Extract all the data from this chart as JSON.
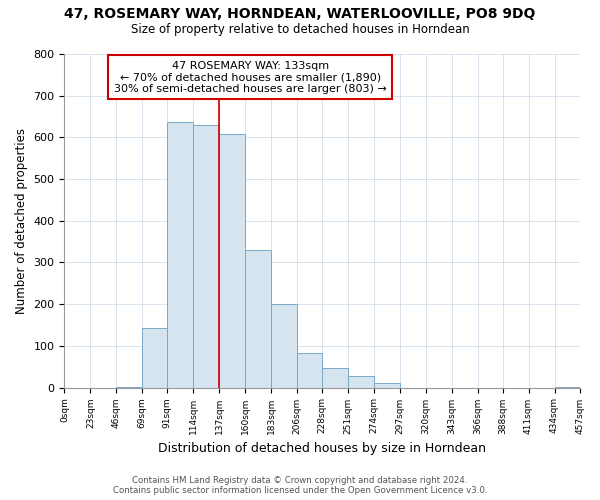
{
  "title1": "47, ROSEMARY WAY, HORNDEAN, WATERLOOVILLE, PO8 9DQ",
  "title2": "Size of property relative to detached houses in Horndean",
  "xlabel": "Distribution of detached houses by size in Horndean",
  "ylabel": "Number of detached properties",
  "annotation_line1": "47 ROSEMARY WAY: 133sqm",
  "annotation_line2": "← 70% of detached houses are smaller (1,890)",
  "annotation_line3": "30% of semi-detached houses are larger (803) →",
  "bin_edges": [
    0,
    23,
    46,
    69,
    91,
    114,
    137,
    160,
    183,
    206,
    228,
    251,
    274,
    297,
    320,
    343,
    366,
    388,
    411,
    434,
    457
  ],
  "bin_counts": [
    0,
    0,
    2,
    143,
    636,
    630,
    607,
    330,
    200,
    83,
    47,
    27,
    12,
    0,
    0,
    0,
    0,
    0,
    0,
    2
  ],
  "bar_color": "#d6e4f0",
  "bar_edge_color": "#7aaac8",
  "vline_color": "#cc0000",
  "vline_x": 137,
  "annotation_box_edge_color": "#cc0000",
  "ylim": [
    0,
    800
  ],
  "yticks": [
    0,
    100,
    200,
    300,
    400,
    500,
    600,
    700,
    800
  ],
  "footer1": "Contains HM Land Registry data © Crown copyright and database right 2024.",
  "footer2": "Contains public sector information licensed under the Open Government Licence v3.0.",
  "bg_color": "#ffffff",
  "grid_color": "#c8d8e8"
}
